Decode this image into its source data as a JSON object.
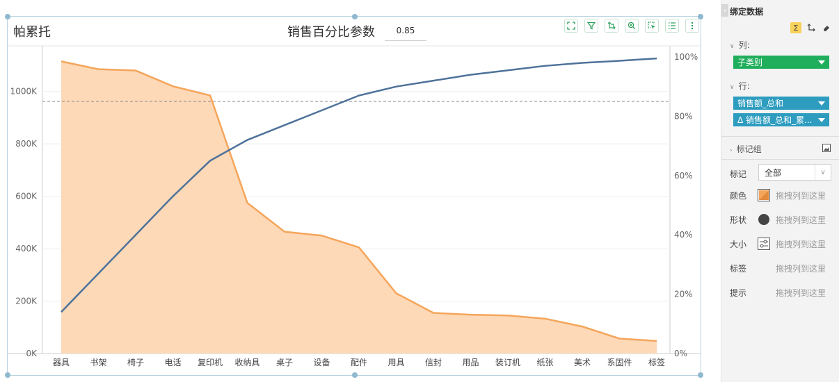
{
  "chart": {
    "title": "帕累托",
    "param_label": "销售百分比参数",
    "param_value": "0.85",
    "toolbar": [
      "fullscreen-icon",
      "filter-icon",
      "swap-axis-icon",
      "zoom-icon",
      "select-icon",
      "list-icon",
      "more-icon"
    ]
  },
  "chart_data": {
    "type": "area",
    "categories": [
      "器具",
      "书架",
      "椅子",
      "电话",
      "复印机",
      "收纳具",
      "桌子",
      "设备",
      "配件",
      "用具",
      "信封",
      "用品",
      "装订机",
      "纸张",
      "美术",
      "系固件",
      "标签"
    ],
    "series": [
      {
        "values": [
          1115000,
          1085000,
          1080000,
          1020000,
          985000,
          575000,
          465000,
          450000,
          405000,
          230000,
          155000,
          148000,
          145000,
          133000,
          103000,
          57000,
          48000
        ],
        "color": "#f5a55a",
        "fill": "#fdd9b8",
        "axis": "left"
      },
      {
        "values": [
          0.14,
          0.27,
          0.4,
          0.53,
          0.65,
          0.72,
          0.77,
          0.82,
          0.87,
          0.9,
          0.92,
          0.94,
          0.955,
          0.97,
          0.98,
          0.987,
          0.995
        ],
        "color": "#4e729a",
        "axis": "right"
      }
    ],
    "y_left": {
      "min": 0,
      "max": 1100000,
      "ticks": [
        "0K",
        "200K",
        "400K",
        "600K",
        "800K",
        "1000K"
      ],
      "tick_values": [
        0,
        200000,
        400000,
        600000,
        800000,
        1000000
      ]
    },
    "y_right": {
      "min": 0,
      "max": 1.0,
      "ticks": [
        "0%",
        "20%",
        "40%",
        "60%",
        "80%",
        "100%"
      ],
      "tick_values": [
        0,
        0.2,
        0.4,
        0.6,
        0.8,
        1.0
      ]
    },
    "reference_line": 0.85,
    "grid": true
  },
  "panel": {
    "title": "绑定数据",
    "columns_label": "列:",
    "columns_field": "子类别",
    "rows_label": "行:",
    "rows_fields": [
      "销售额_总和",
      "销售额_总和_累..."
    ],
    "mark_group_label": "标记组",
    "mark_label": "标记",
    "mark_value": "全部",
    "props": [
      {
        "name": "颜色",
        "hint": "拖拽列到这里"
      },
      {
        "name": "形状",
        "hint": "拖拽列到这里"
      },
      {
        "name": "大小",
        "hint": "拖拽列到这里"
      },
      {
        "name": "标签",
        "hint": "拖拽列到这里"
      },
      {
        "name": "提示",
        "hint": "拖拽列到这里"
      }
    ],
    "delta_symbol": "Δ"
  }
}
